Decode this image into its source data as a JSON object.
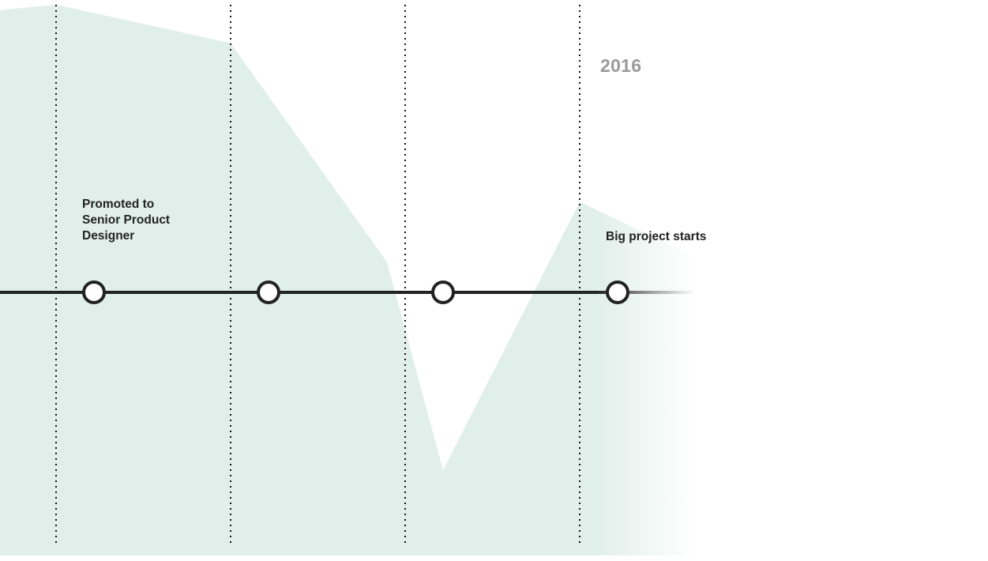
{
  "colors": {
    "background": "#ffffff",
    "area_fill": "#e1efeb",
    "timeline": "#222222",
    "node_fill": "#ffffff",
    "divider": "#111111",
    "year_text": "#9a9a9a",
    "label_text": "#222222"
  },
  "timeline": {
    "year": "2016",
    "events": [
      {
        "label": "Promoted to Senior Product Designer"
      },
      {
        "label": ""
      },
      {
        "label": ""
      },
      {
        "label": "Big project starts"
      }
    ]
  },
  "chart_data": {
    "type": "area",
    "grid": "vertical dotted dividers",
    "series": [
      {
        "values": [
          0.99,
          1.0,
          0.93,
          0.53,
          0.15,
          0.64,
          0.54
        ]
      }
    ]
  }
}
